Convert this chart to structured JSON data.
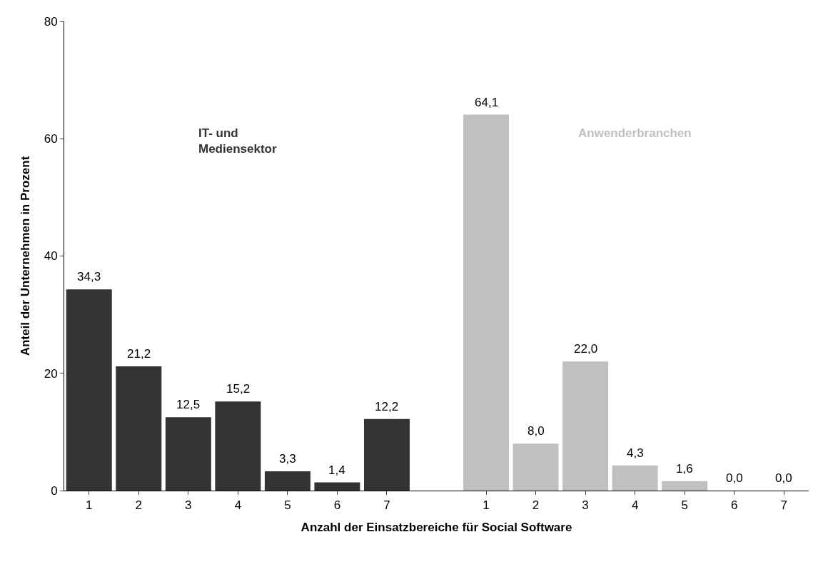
{
  "chart_data": {
    "type": "bar",
    "xlabel": "Anzahl der Einsatzbereiche für Social Software",
    "ylabel": "Anteil der Unternehmen in Prozent",
    "categories": [
      "1",
      "2",
      "3",
      "4",
      "5",
      "6",
      "7",
      null,
      "1",
      "2",
      "3",
      "4",
      "5",
      "6",
      "7"
    ],
    "series": [
      {
        "name": "IT- und\nMediensektor",
        "color": "#333333",
        "values": [
          34.3,
          21.2,
          12.5,
          15.2,
          3.3,
          1.4,
          12.2,
          null,
          null,
          null,
          null,
          null,
          null,
          null,
          null
        ],
        "value_labels": [
          "34,3",
          "21,2",
          "12,5",
          "15,2",
          "3,3",
          "1,4",
          "12,2",
          null,
          null,
          null,
          null,
          null,
          null,
          null,
          null
        ]
      },
      {
        "name": "Anwenderbranchen",
        "color": "#c0c0c0",
        "values": [
          null,
          null,
          null,
          null,
          null,
          null,
          null,
          null,
          64.1,
          8.0,
          22.0,
          4.3,
          1.6,
          0.0,
          0.0
        ],
        "value_labels": [
          null,
          null,
          null,
          null,
          null,
          null,
          null,
          null,
          "64,1",
          "8,0",
          "22,0",
          "4,3",
          "1,6",
          "0,0",
          "0,0"
        ]
      }
    ],
    "ylim": [
      0,
      80
    ],
    "yticks": [
      0,
      20,
      40,
      60,
      80
    ],
    "legend": false
  }
}
